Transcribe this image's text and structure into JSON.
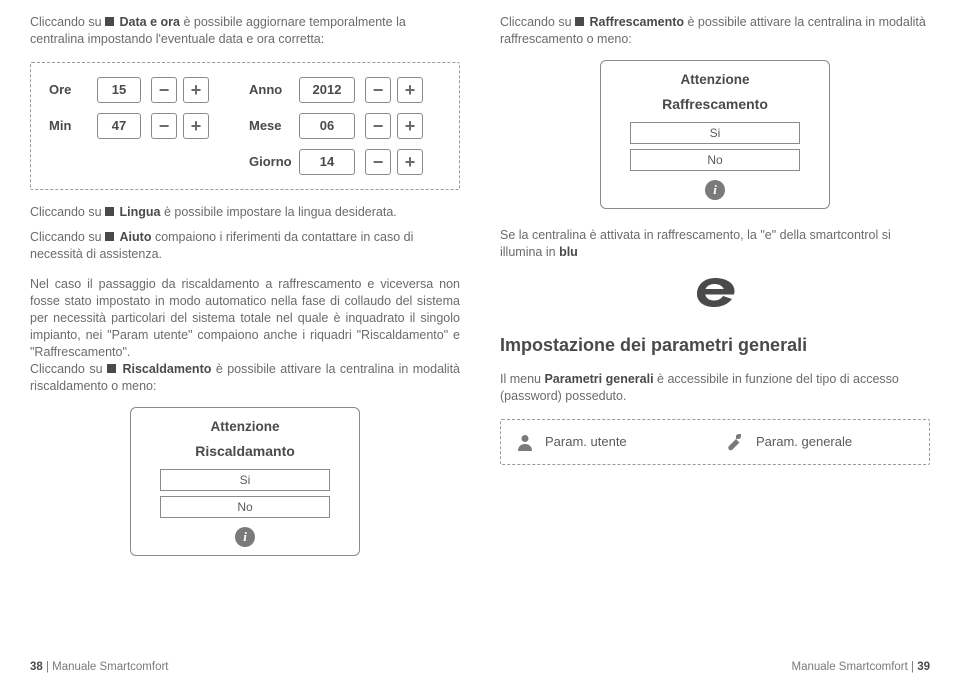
{
  "left": {
    "intro_html": "Cliccando su ■ <b>Data e ora</b> è possibile aggiornare temporalmente la centralina impostando l'eventuale data e ora corretta:",
    "datetime": {
      "ore": {
        "label": "Ore",
        "value": "15"
      },
      "min": {
        "label": "Min",
        "value": "47"
      },
      "anno": {
        "label": "Anno",
        "value": "2012"
      },
      "mese": {
        "label": "Mese",
        "value": "06"
      },
      "giorno": {
        "label": "Giorno",
        "value": "14"
      }
    },
    "lingua_html": "Cliccando su ■ <b>Lingua</b> è possibile impostare la lingua desiderata.",
    "aiuto_html": "Cliccando su ■ <b>Aiuto</b> compaiono i riferimenti da contattare in caso di necessità di assistenza.",
    "big_html": "Nel caso il passaggio da riscaldamento a raffrescamento e viceversa non fosse stato impostato in modo automatico nella fase di collaudo del sistema per necessità particolari del sistema totale nel quale è inquadrato il singolo impianto, nei \"Param utente\" compaiono anche i riquadri \"Riscaldamento\" e \"Raffrescamento\".<br>Cliccando su ■ <b>Riscaldamento</b> è possibile attivare la centralina in modalità riscaldamento o meno:",
    "card": {
      "title": "Attenzione",
      "sub": "Riscaldamanto",
      "yes": "Si",
      "no": "No"
    },
    "footer": {
      "num": "38",
      "rest": " | Manuale Smartcomfort"
    }
  },
  "right": {
    "intro_html": "Cliccando su ■ <b>Raffrescamento</b> è possibile attivare la centralina in modalità raffrescamento o meno:",
    "card": {
      "title": "Attenzione",
      "sub": "Raffrescamento",
      "yes": "Si",
      "no": "No"
    },
    "azzurro_html": "Se la centralina è attivata in raffrescamento, la \"e\" della smartcontrol si illumina in <b>blu</b>",
    "sect": "Impostazione dei parametri generali",
    "pg_html": "Il menu <b>Parametri generali</b> è accessibile in funzione del tipo di accesso (password) posseduto.",
    "btns": {
      "utente": "Param. utente",
      "generale": "Param. generale"
    },
    "footer": {
      "pre": "Manuale Smartcomfort | ",
      "num": "39"
    }
  },
  "style": {
    "gray": "#6b6b6b",
    "dark": "#4a4a4a",
    "border": "#8a8a8a",
    "blue": "#2aa8d8"
  }
}
